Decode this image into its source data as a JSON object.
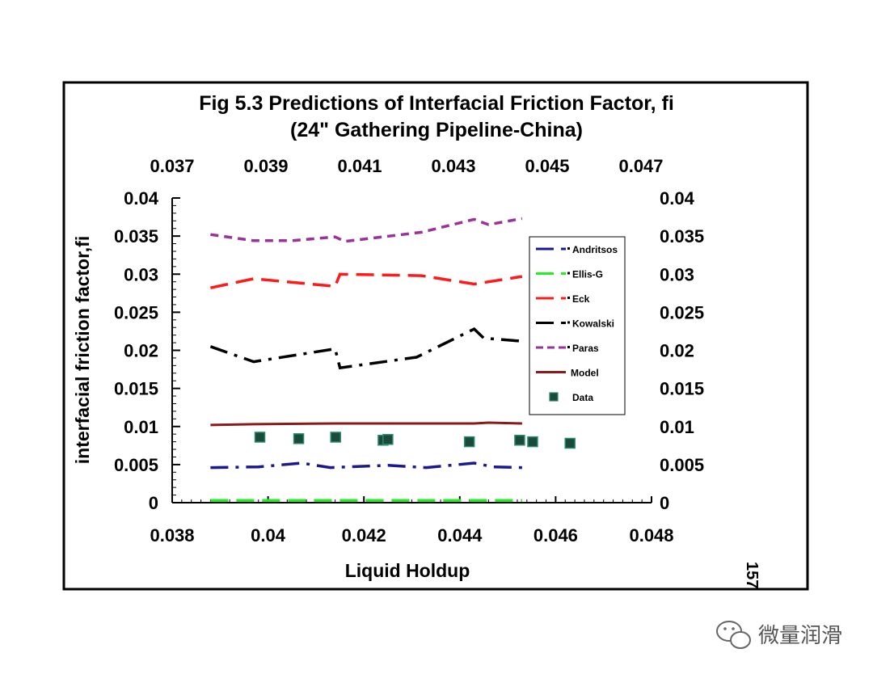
{
  "page_number": "157",
  "watermark": {
    "text": "微量润滑",
    "icon": "wechat-icon"
  },
  "chart_data": {
    "type": "line",
    "title": "Fig 5.3 Predictions of Interfacial Friction Factor, fi",
    "subtitle": "(24\" Gathering Pipeline-China)",
    "xlabel": "Liquid Holdup",
    "ylabel": "interfacial friction factor,fi",
    "xlim": [
      0.038,
      0.048
    ],
    "ylim": [
      0,
      0.04
    ],
    "x_ticks": [
      "0.038",
      "0.04",
      "0.042",
      "0.044",
      "0.046",
      "0.048"
    ],
    "x_top_lim": [
      0.037,
      0.047
    ],
    "x_top_ticks": [
      "0.037",
      "0.039",
      "0.041",
      "0.043",
      "0.045",
      "0.047"
    ],
    "y_ticks": [
      "0",
      "0.005",
      "0.01",
      "0.015",
      "0.02",
      "0.025",
      "0.03",
      "0.035",
      "0.04"
    ],
    "y_right_ticks": [
      "0",
      "0.005",
      "0.01",
      "0.015",
      "0.02",
      "0.025",
      "0.03",
      "0.035",
      "0.04"
    ],
    "grid": false,
    "legend_position": "right",
    "series": [
      {
        "name": "Andritsos",
        "color": "#1a1a8c",
        "dash": "dashdot",
        "x": [
          0.0388,
          0.0398,
          0.0407,
          0.0413,
          0.0425,
          0.0433,
          0.0443,
          0.0447,
          0.0453
        ],
        "y": [
          0.0046,
          0.0047,
          0.0052,
          0.0046,
          0.0049,
          0.0046,
          0.0052,
          0.0047,
          0.0046
        ]
      },
      {
        "name": "Ellis-G",
        "color": "#22ee22",
        "dash": "dash",
        "x": [
          0.0388,
          0.0398,
          0.041,
          0.0425,
          0.0443,
          0.0453
        ],
        "y": [
          0.0003,
          0.0003,
          0.0003,
          0.0003,
          0.0003,
          0.0003
        ]
      },
      {
        "name": "Eck",
        "color": "#ff1a1a",
        "dash": "dash",
        "x": [
          0.0388,
          0.0397,
          0.0414,
          0.0415,
          0.0432,
          0.0443,
          0.0453
        ],
        "y": [
          0.0282,
          0.0294,
          0.0284,
          0.03,
          0.0298,
          0.0287,
          0.0297
        ]
      },
      {
        "name": "Kowalski",
        "color": "#000000",
        "dash": "dashdot",
        "x": [
          0.0388,
          0.0397,
          0.0408,
          0.0414,
          0.0415,
          0.0431,
          0.0443,
          0.0445,
          0.0453
        ],
        "y": [
          0.0205,
          0.0185,
          0.0196,
          0.0202,
          0.0177,
          0.0191,
          0.0228,
          0.0216,
          0.0212
        ]
      },
      {
        "name": "Paras",
        "color": "#993399",
        "dash": "shortdash",
        "x": [
          0.0388,
          0.0397,
          0.0405,
          0.0414,
          0.0416,
          0.0432,
          0.0443,
          0.0446,
          0.0453
        ],
        "y": [
          0.0352,
          0.0344,
          0.0344,
          0.0349,
          0.0343,
          0.0355,
          0.0372,
          0.0365,
          0.0373
        ]
      },
      {
        "name": "Model",
        "color": "#8b1a1a",
        "dash": "solid",
        "x": [
          0.0388,
          0.0397,
          0.0414,
          0.0432,
          0.0443,
          0.0446,
          0.0453
        ],
        "y": [
          0.0102,
          0.0103,
          0.0104,
          0.0104,
          0.0104,
          0.0105,
          0.0104
        ]
      },
      {
        "name": "Data",
        "color": "#1a4a3a",
        "marker": "square",
        "x": [
          0.03983,
          0.04064,
          0.04141,
          0.0424,
          0.0425,
          0.0442,
          0.04525,
          0.04552,
          0.0463
        ],
        "y": [
          0.0086,
          0.0084,
          0.0086,
          0.0082,
          0.0083,
          0.008,
          0.0082,
          0.008,
          0.0078
        ]
      }
    ]
  }
}
